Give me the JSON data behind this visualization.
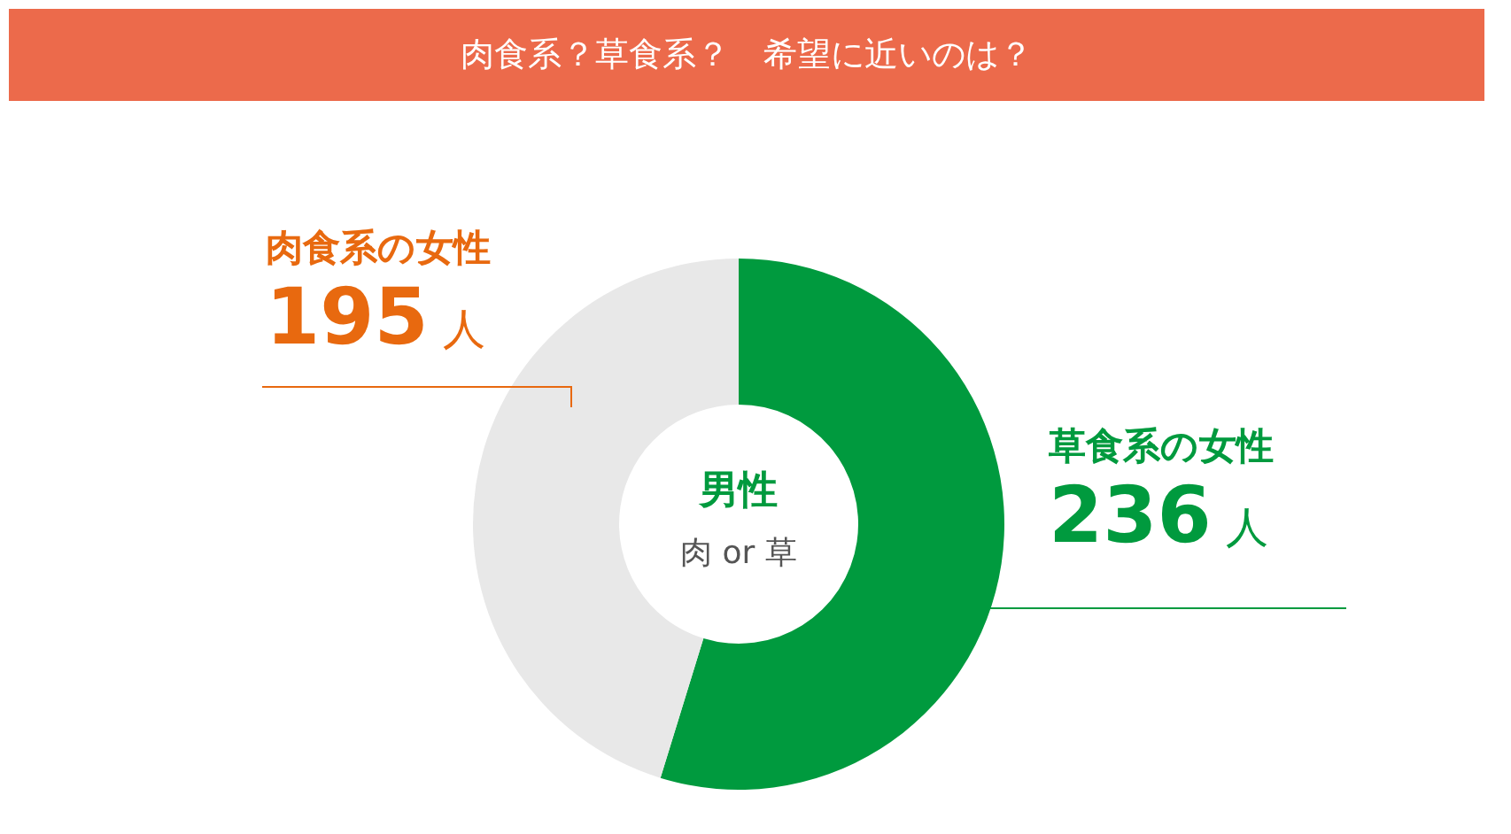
{
  "chart_data": {
    "type": "donut",
    "title": "肉食系？草食系？　希望に近いのは？",
    "categories": [
      "草食系の女性",
      "肉食系の女性"
    ],
    "values": [
      236,
      195
    ],
    "colors": [
      "#009a3e",
      "#e8e8e8"
    ],
    "value_labels": [
      "236 人",
      "195 人"
    ],
    "annotations": [
      "男性",
      "肉 or 草"
    ],
    "legend": false
  }
}
